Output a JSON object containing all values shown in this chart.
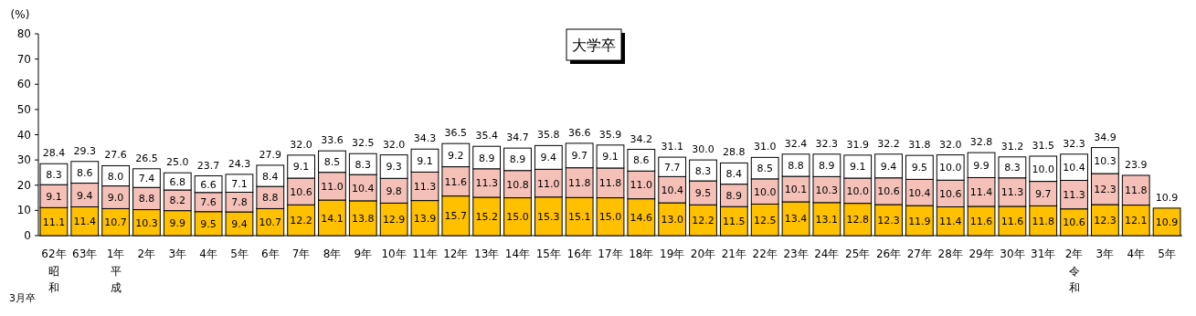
{
  "chart_data": {
    "type": "bar",
    "title": "大学卒",
    "ylabel": "(%)",
    "stacked": true,
    "categories": [
      "62年",
      "63年",
      "1年",
      "2年",
      "3年",
      "4年",
      "5年",
      "6年",
      "7年",
      "8年",
      "9年",
      "10年",
      "11年",
      "12年",
      "13年",
      "14年",
      "15年",
      "16年",
      "17年",
      "18年",
      "19年",
      "20年",
      "21年",
      "22年",
      "23年",
      "24年",
      "25年",
      "26年",
      "27年",
      "28年",
      "29年",
      "30年",
      "31年",
      "2年",
      "3年",
      "4年",
      "5年"
    ],
    "series": [
      {
        "color": "#ffc000",
        "values": [
          11.1,
          11.4,
          10.7,
          10.3,
          9.9,
          9.5,
          9.4,
          10.7,
          12.2,
          14.1,
          13.8,
          12.9,
          13.9,
          15.7,
          15.2,
          15.0,
          15.3,
          15.1,
          15.0,
          14.6,
          13.0,
          12.2,
          11.5,
          12.5,
          13.4,
          13.1,
          12.8,
          12.3,
          11.9,
          11.4,
          11.6,
          11.6,
          11.8,
          10.6,
          12.3,
          12.1,
          10.9
        ],
        "value_labels": [
          "11.1",
          "11.4",
          "10.7",
          "10.3",
          "9.9",
          "9.5",
          "9.4",
          "10.7",
          "12.2",
          "14.1",
          "13.8",
          "12.9",
          "13.9",
          "15.7",
          "15.2",
          "15.0",
          "15.3",
          "15.1",
          "15.0",
          "14.6",
          "13.0",
          "12.2",
          "11.5",
          "12.5",
          "13.4",
          "13.1",
          "12.8",
          "12.3",
          "11.9",
          "11.4",
          "11.6",
          "11.6",
          "11.8",
          "10.6",
          "12.3",
          "12.1",
          "10.9"
        ]
      },
      {
        "color": "#f4c0b8",
        "values": [
          9.1,
          9.4,
          9.0,
          8.8,
          8.2,
          7.6,
          7.8,
          8.8,
          10.6,
          11.0,
          10.4,
          9.8,
          11.3,
          11.6,
          11.3,
          10.8,
          11.0,
          11.8,
          11.8,
          11.0,
          10.4,
          9.5,
          8.9,
          10.0,
          10.1,
          10.3,
          10.0,
          10.6,
          10.4,
          10.6,
          11.4,
          11.3,
          9.7,
          11.3,
          12.3,
          11.8,
          null
        ],
        "value_labels": [
          "9.1",
          "9.4",
          "9.0",
          "8.8",
          "8.2",
          "7.6",
          "7.8",
          "8.8",
          "10.6",
          "11.0",
          "10.4",
          "9.8",
          "11.3",
          "11.6",
          "11.3",
          "10.8",
          "11.0",
          "11.8",
          "11.8",
          "11.0",
          "10.4",
          "9.5",
          "8.9",
          "10.0",
          "10.1",
          "10.3",
          "10.0",
          "10.6",
          "10.4",
          "10.6",
          "11.4",
          "11.3",
          "9.7",
          "11.3",
          "12.3",
          "11.8",
          null
        ]
      },
      {
        "color": "#ffffff",
        "values": [
          8.3,
          8.6,
          8.0,
          7.4,
          6.8,
          6.6,
          7.1,
          8.4,
          9.1,
          8.5,
          8.3,
          9.3,
          9.1,
          9.2,
          8.9,
          8.9,
          9.4,
          9.7,
          9.1,
          8.6,
          7.7,
          8.3,
          8.4,
          8.5,
          8.8,
          8.9,
          9.1,
          9.4,
          9.5,
          10.0,
          9.9,
          8.3,
          10.0,
          10.4,
          10.3,
          null,
          null
        ],
        "value_labels": [
          "8.3",
          "8.6",
          "8.0",
          "7.4",
          "6.8",
          "6.6",
          "7.1",
          "8.4",
          "9.1",
          "8.5",
          "8.3",
          "9.3",
          "9.1",
          "9.2",
          "8.9",
          "8.9",
          "9.4",
          "9.7",
          "9.1",
          "8.6",
          "7.7",
          "8.3",
          "8.4",
          "8.5",
          "8.8",
          "8.9",
          "9.1",
          "9.4",
          "9.5",
          "10.0",
          "9.9",
          "8.3",
          "10.0",
          "10.4",
          "10.3",
          null,
          null
        ]
      }
    ],
    "totals": [
      "28.4",
      "29.3",
      "27.6",
      "26.5",
      "25.0",
      "23.7",
      "24.3",
      "27.9",
      "32.0",
      "33.6",
      "32.5",
      "32.0",
      "34.3",
      "36.5",
      "35.4",
      "34.7",
      "35.8",
      "36.6",
      "35.9",
      "34.2",
      "31.1",
      "30.0",
      "28.8",
      "31.0",
      "32.4",
      "32.3",
      "31.9",
      "32.2",
      "31.8",
      "32.0",
      "32.8",
      "31.2",
      "31.5",
      "32.3",
      "34.9",
      "23.9",
      "10.9"
    ],
    "ylim": [
      0,
      80
    ],
    "yticks": [
      0,
      10,
      20,
      30,
      40,
      50,
      60,
      70,
      80
    ],
    "annotations": [
      "3月卒",
      "昭和",
      "平成",
      "令和"
    ]
  }
}
